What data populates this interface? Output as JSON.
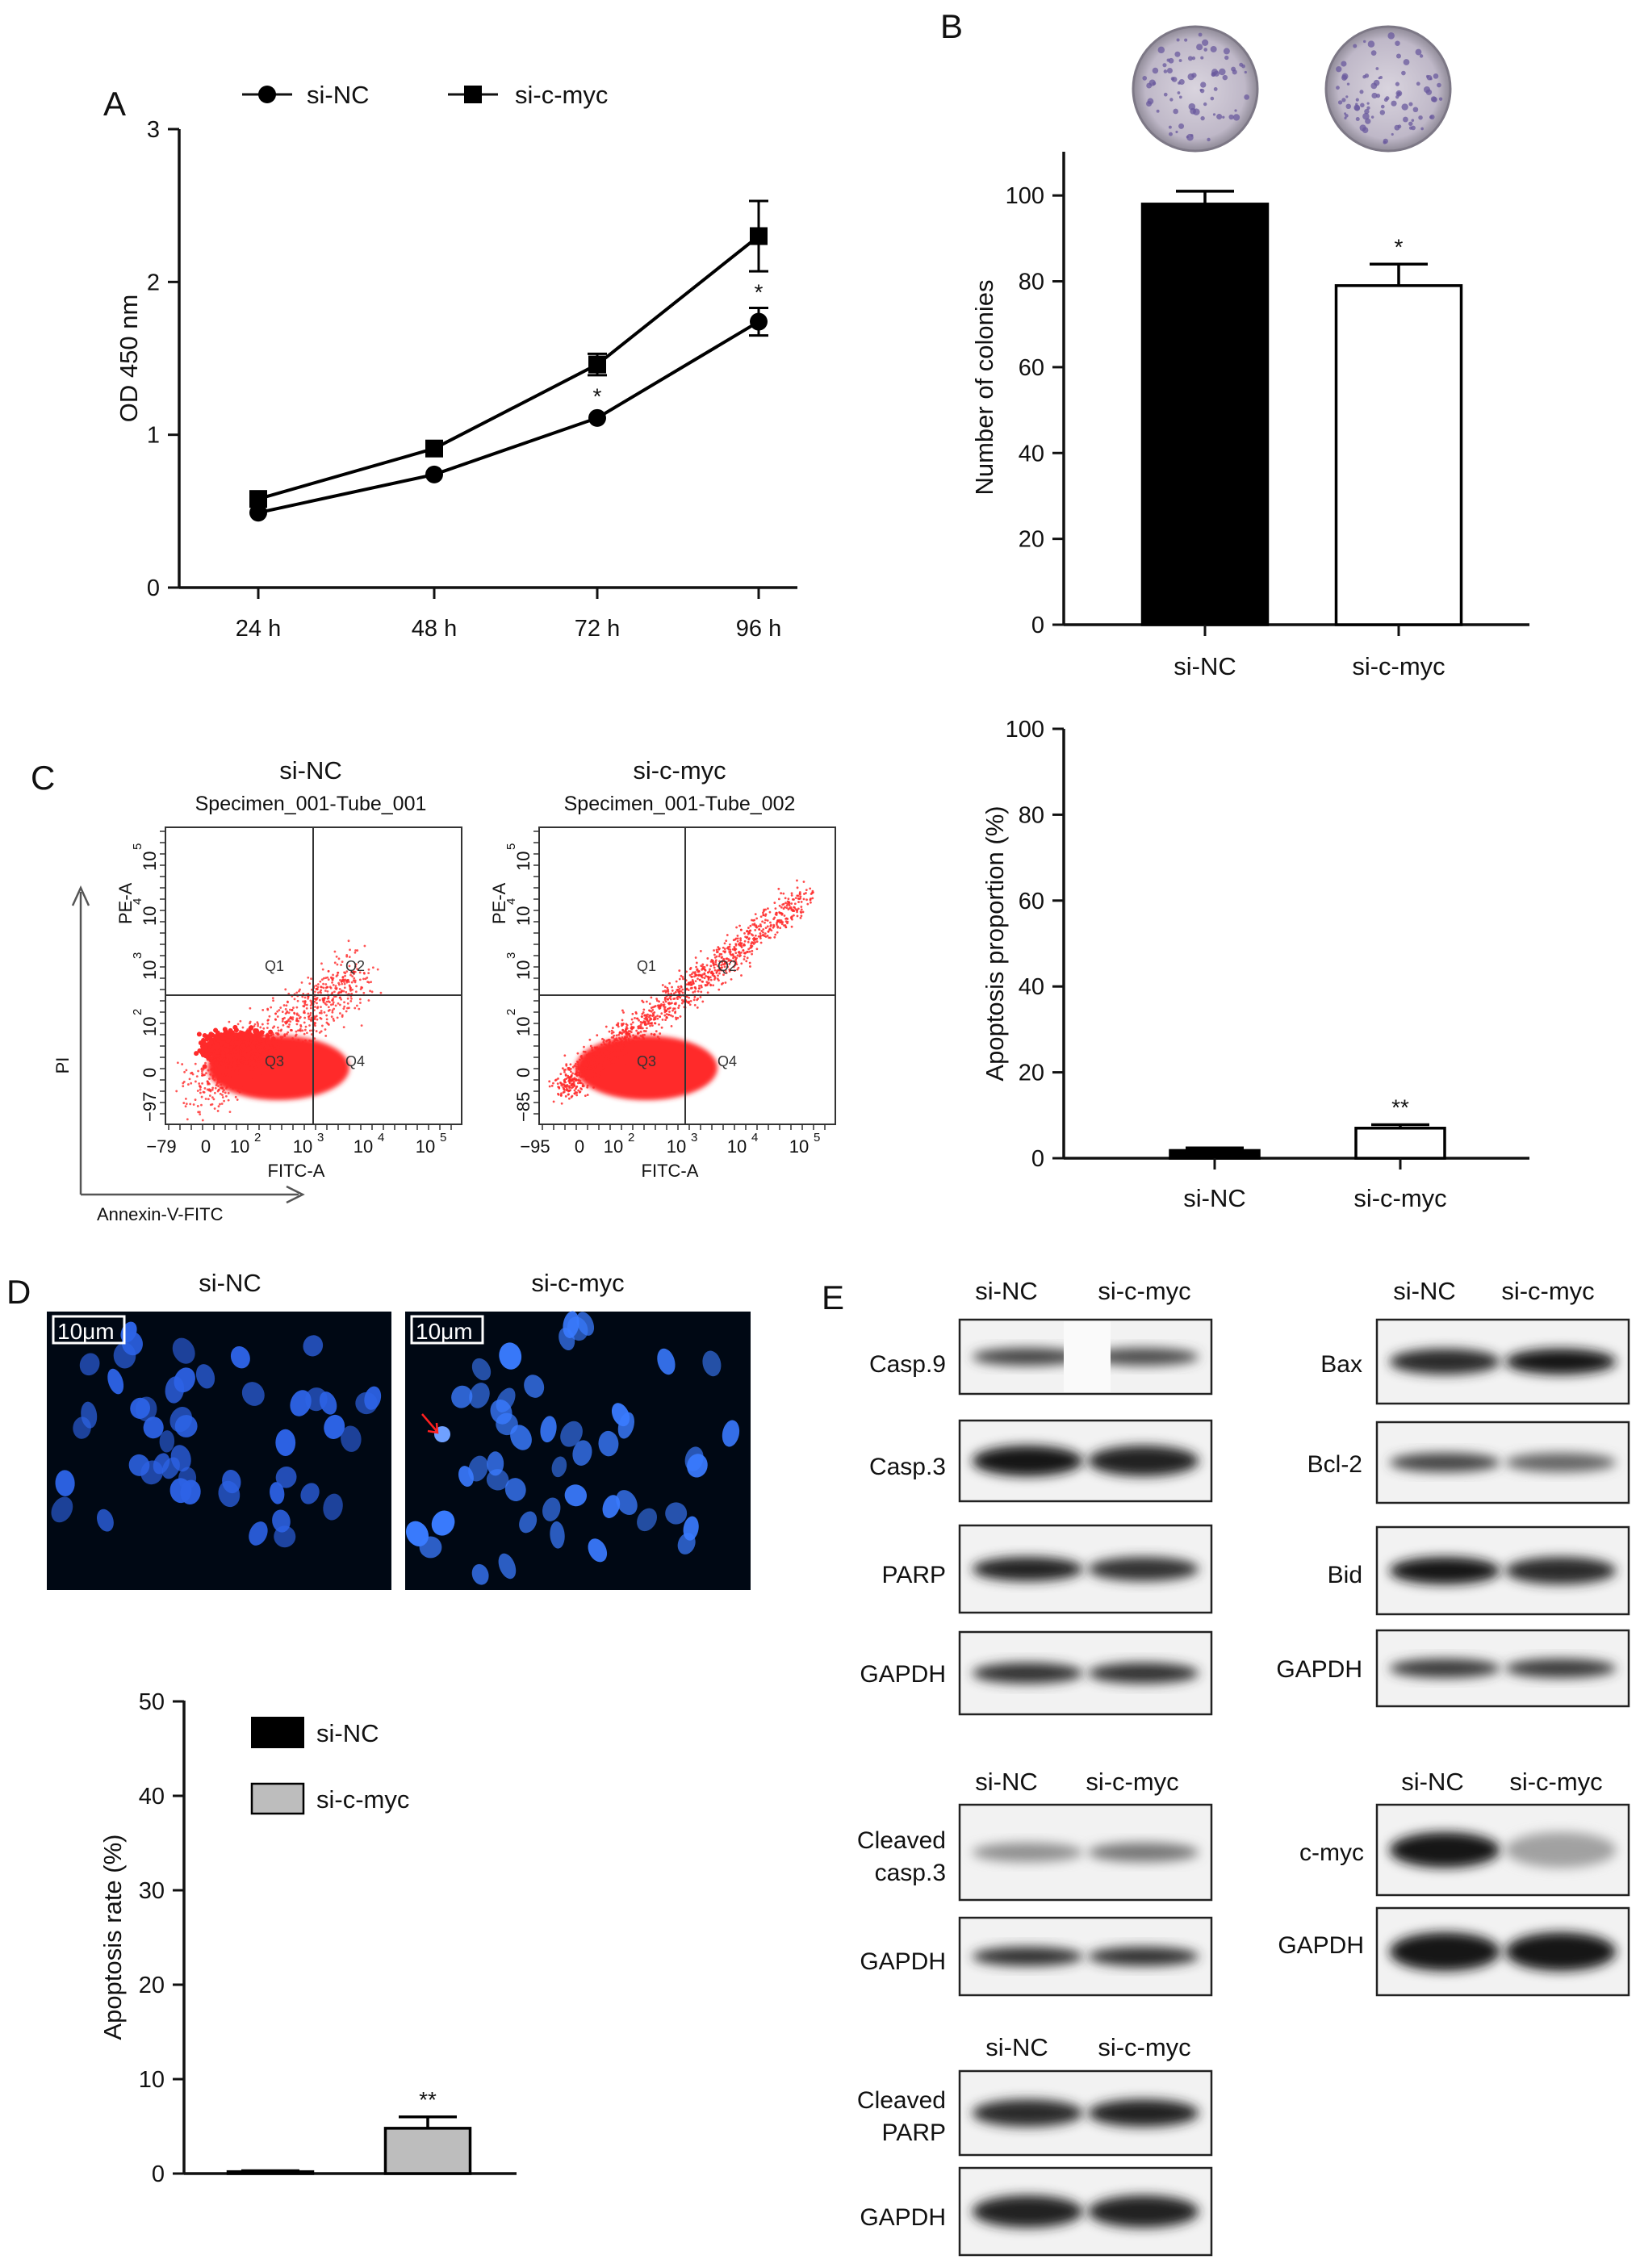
{
  "panels": {
    "A": "A",
    "B": "B",
    "C": "C",
    "D": "D",
    "E": "E"
  },
  "colors": {
    "si_nc": "#000000",
    "si_cmyc_b": "#ffffff",
    "si_cmyc_d": "#bdbdbd",
    "flow_dots": "#ff2a2a",
    "nuclei": "#2f6bff"
  },
  "chart_data": [
    {
      "id": "A",
      "type": "line",
      "categories": [
        "24 h",
        "48 h",
        "72 h",
        "96 h"
      ],
      "ylabel": "OD 450 nm",
      "ylim": [
        0,
        3
      ],
      "yticks": [
        "0",
        "1",
        "2",
        "3"
      ],
      "legend": [
        "si-NC",
        "si-c-myc"
      ],
      "legend_placement": "top",
      "series": [
        {
          "name": "si-NC",
          "marker": "circle",
          "values": [
            0.49,
            0.74,
            1.11,
            1.74
          ],
          "errors": [
            0.03,
            0.04,
            0.04,
            0.09
          ]
        },
        {
          "name": "si-c-myc",
          "marker": "square",
          "values": [
            0.58,
            0.91,
            1.46,
            2.3
          ],
          "errors": [
            0.04,
            0.05,
            0.07,
            0.23
          ]
        }
      ],
      "annotations": [
        {
          "category": "72 h",
          "text": "*"
        },
        {
          "category": "96 h",
          "text": "*"
        }
      ]
    },
    {
      "id": "B",
      "type": "bar",
      "categories": [
        "si-NC",
        "si-c-myc"
      ],
      "values": [
        98,
        79
      ],
      "errors": [
        3,
        5
      ],
      "ylabel": "Number of colonies",
      "ylim": [
        0,
        110
      ],
      "yticks": [
        "0",
        "20",
        "40",
        "60",
        "80",
        "100"
      ],
      "annotations": [
        {
          "category": "si-c-myc",
          "text": "*"
        }
      ]
    },
    {
      "id": "C-bar",
      "type": "bar",
      "categories": [
        "si-NC",
        "si-c-myc"
      ],
      "values": [
        1.8,
        7.0
      ],
      "errors": [
        0.6,
        0.8
      ],
      "ylabel": "Apoptosis proportion (%)",
      "ylim": [
        0,
        100
      ],
      "yticks": [
        "0",
        "20",
        "40",
        "60",
        "80",
        "100"
      ],
      "annotations": [
        {
          "category": "si-c-myc",
          "text": "**"
        }
      ]
    },
    {
      "id": "D-bar",
      "type": "bar",
      "categories": [
        "si-NC",
        "si-c-myc"
      ],
      "values": [
        0.2,
        4.8
      ],
      "errors": [
        0.1,
        1.2
      ],
      "ylabel": "Apoptosis rate (%)",
      "ylim": [
        0,
        50
      ],
      "yticks": [
        "0",
        "10",
        "20",
        "30",
        "40",
        "50"
      ],
      "legend": [
        "si-NC",
        "si-c-myc"
      ],
      "annotations": [
        {
          "category": "si-c-myc",
          "text": "**"
        }
      ]
    }
  ],
  "flow": {
    "group_names": [
      "si-NC",
      "si-c-myc"
    ],
    "specimens": [
      "Specimen_001-Tube_001",
      "Specimen_001-Tube_002"
    ],
    "y_axis_title": "PE-A",
    "x_axis_title": "FITC-A",
    "y_min_labels": [
      "−97",
      "−85"
    ],
    "x_min_labels": [
      "−79",
      "−95"
    ],
    "quadrants": [
      "Q1",
      "Q2",
      "Q3",
      "Q4"
    ],
    "outer_y": "PI",
    "outer_x": "Annexin-V-FITC"
  },
  "microscopy": {
    "titles": [
      "si-NC",
      "si-c-myc"
    ],
    "scale_bar": "10μm"
  },
  "blots": {
    "si_nc": "si-NC",
    "si_cmyc": "si-c-myc",
    "proteins": {
      "casp9": "Casp.9",
      "casp3": "Casp.3",
      "parp": "PARP",
      "gapdh": "GAPDH",
      "bax": "Bax",
      "bcl2": "Bcl-2",
      "bid": "Bid",
      "cleaved_casp3": [
        "Cleaved",
        "casp.3"
      ],
      "cleaved_parp": [
        "Cleaved",
        "PARP"
      ],
      "cmyc": "c-myc"
    }
  }
}
